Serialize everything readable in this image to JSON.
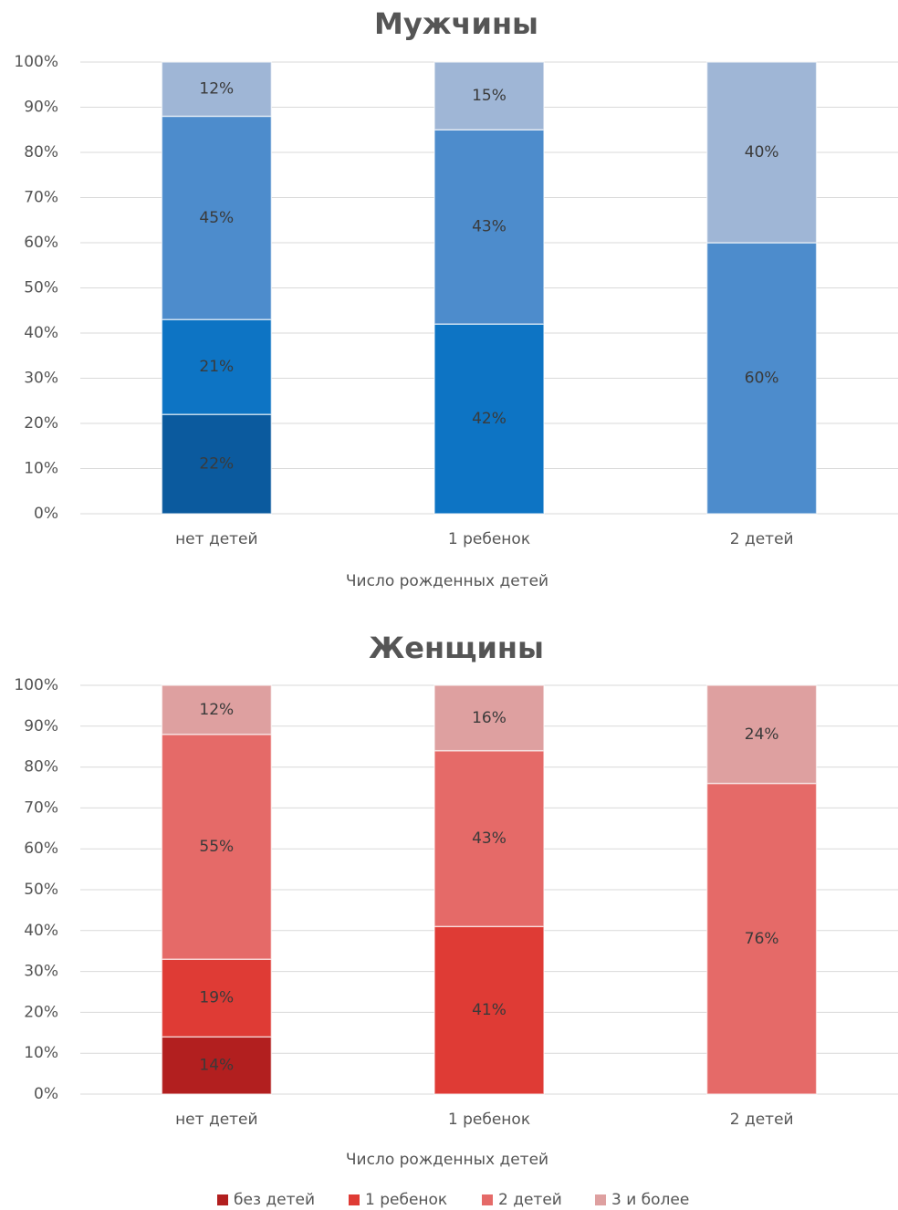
{
  "chart_data": [
    {
      "type": "bar",
      "stacked": true,
      "title": "Мужчины",
      "x_label": "Число рожденных детей",
      "categories": [
        "нет детей",
        "1 ребенок",
        "2 детей"
      ],
      "ylim": [
        0,
        100
      ],
      "yticks": [
        {
          "value": 0,
          "label": "0%"
        },
        {
          "value": 10,
          "label": "10%"
        },
        {
          "value": 20,
          "label": "20%"
        },
        {
          "value": 30,
          "label": "30%"
        },
        {
          "value": 40,
          "label": "40%"
        },
        {
          "value": 50,
          "label": "50%"
        },
        {
          "value": 60,
          "label": "60%"
        },
        {
          "value": 70,
          "label": "70%"
        },
        {
          "value": 80,
          "label": "80%"
        },
        {
          "value": 90,
          "label": "90%"
        },
        {
          "value": 100,
          "label": "100%"
        }
      ],
      "grid": true,
      "series": [
        {
          "color": "#0b5a9e",
          "values": [
            22,
            null,
            null
          ],
          "value_labels": [
            "22%",
            null,
            null
          ]
        },
        {
          "color": "#0d74c4",
          "values": [
            21,
            42,
            null
          ],
          "value_labels": [
            "21%",
            "42%",
            null
          ]
        },
        {
          "color": "#4d8ccc",
          "values": [
            45,
            43,
            60
          ],
          "value_labels": [
            "45%",
            "43%",
            "60%"
          ]
        },
        {
          "color": "#9fb6d6",
          "values": [
            12,
            15,
            40
          ],
          "value_labels": [
            "12%",
            "15%",
            "40%"
          ]
        }
      ]
    },
    {
      "type": "bar",
      "stacked": true,
      "title": "Женщины",
      "x_label": "Число рожденных детей",
      "categories": [
        "нет детей",
        "1 ребенок",
        "2 детей"
      ],
      "ylim": [
        0,
        100
      ],
      "yticks": [
        {
          "value": 0,
          "label": "0%"
        },
        {
          "value": 10,
          "label": "10%"
        },
        {
          "value": 20,
          "label": "20%"
        },
        {
          "value": 30,
          "label": "30%"
        },
        {
          "value": 40,
          "label": "40%"
        },
        {
          "value": 50,
          "label": "50%"
        },
        {
          "value": 60,
          "label": "60%"
        },
        {
          "value": 70,
          "label": "70%"
        },
        {
          "value": 80,
          "label": "80%"
        },
        {
          "value": 90,
          "label": "90%"
        },
        {
          "value": 100,
          "label": "100%"
        }
      ],
      "grid": true,
      "legend": "bottom",
      "series": [
        {
          "name": "без детей",
          "color": "#b21f1f",
          "values": [
            14,
            null,
            null
          ],
          "value_labels": [
            "14%",
            null,
            null
          ]
        },
        {
          "name": "1 ребенок",
          "color": "#df3b35",
          "values": [
            19,
            41,
            null
          ],
          "value_labels": [
            "19%",
            "41%",
            null
          ]
        },
        {
          "name": "2 детей",
          "color": "#e56a68",
          "values": [
            55,
            43,
            76
          ],
          "value_labels": [
            "55%",
            "43%",
            "76%"
          ]
        },
        {
          "name": "3 и более",
          "color": "#dea0a0",
          "values": [
            12,
            16,
            24
          ],
          "value_labels": [
            "12%",
            "16%",
            "24%"
          ]
        }
      ]
    }
  ]
}
